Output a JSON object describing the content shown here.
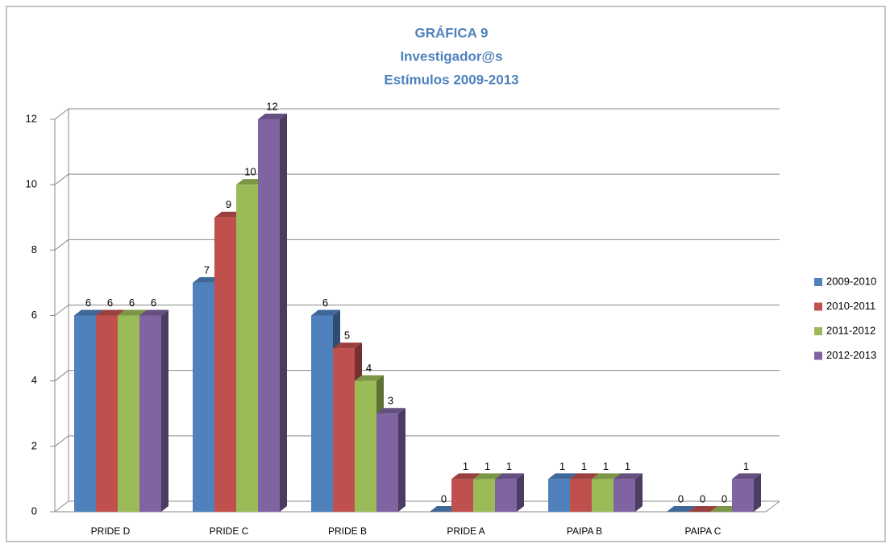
{
  "chart_data": {
    "type": "bar3d",
    "title": [
      "GRÁFICA 9",
      "Investigador@s",
      "Estímulos 2009-2013"
    ],
    "categories": [
      "PRIDE D",
      "PRIDE C",
      "PRIDE B",
      "PRIDE A",
      "PAIPA B",
      "PAIPA C"
    ],
    "series": [
      {
        "name": "2009-2010",
        "color": "#4f81bd",
        "values": [
          6,
          7,
          6,
          0,
          1,
          0
        ]
      },
      {
        "name": "2010-2011",
        "color": "#c0504d",
        "values": [
          6,
          9,
          5,
          1,
          1,
          0
        ]
      },
      {
        "name": "2011-2012",
        "color": "#9bbb59",
        "values": [
          6,
          10,
          4,
          1,
          1,
          0
        ]
      },
      {
        "name": "2012-2013",
        "color": "#8064a2",
        "values": [
          6,
          12,
          3,
          1,
          1,
          1
        ]
      }
    ],
    "ylim": [
      0,
      12
    ],
    "yticks": [
      0,
      2,
      4,
      6,
      8,
      10,
      12
    ],
    "grid": true,
    "legend": "right"
  }
}
